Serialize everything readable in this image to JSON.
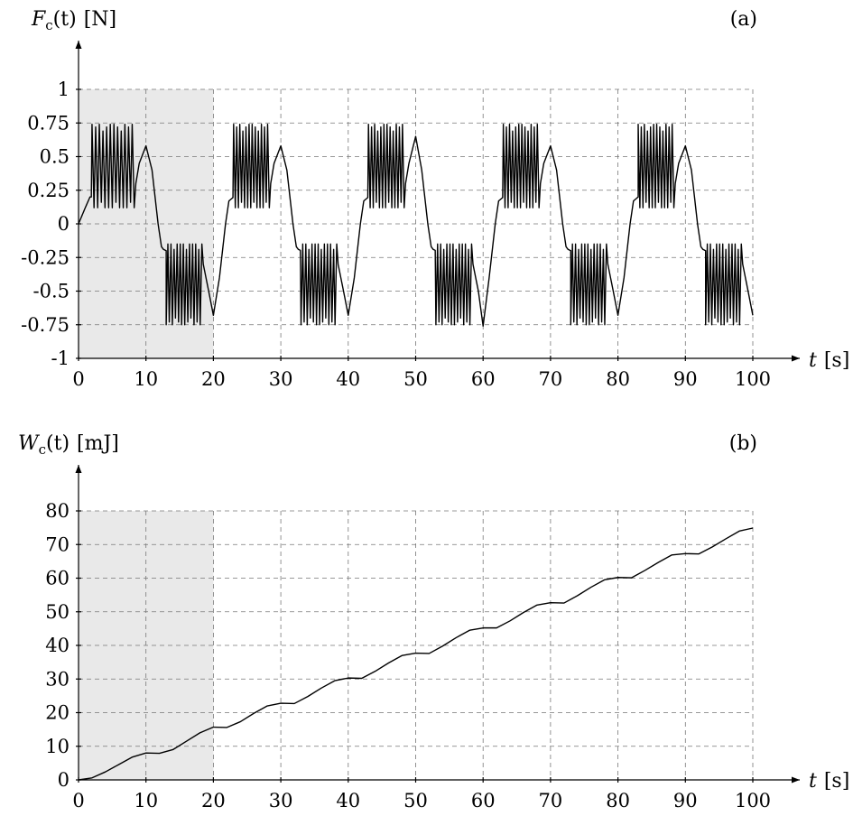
{
  "chart_data": [
    {
      "type": "line",
      "panel_tag": "(a)",
      "ylabel": "F_c(t) [N]",
      "ylabel_parts": {
        "symbol": "F",
        "subscript": "c",
        "argument": "(t)",
        "unit": "[N]"
      },
      "xlabel": "t [s]",
      "xlabel_parts": {
        "symbol": "t",
        "unit": "[s]"
      },
      "xlim": [
        0,
        100
      ],
      "ylim": [
        -1,
        1
      ],
      "x_ticks": [
        0,
        10,
        20,
        30,
        40,
        50,
        60,
        70,
        80,
        90,
        100
      ],
      "x_tick_labels": [
        "0",
        "10",
        "20",
        "30",
        "40",
        "50",
        "60",
        "70",
        "80",
        "90",
        "100"
      ],
      "y_ticks": [
        -1,
        -0.75,
        -0.5,
        -0.25,
        0,
        0.25,
        0.5,
        0.75,
        1
      ],
      "y_tick_labels": [
        "-1",
        "-0.75",
        "-0.5",
        "-0.25",
        "0",
        "0.25",
        "0.5",
        "0.75",
        "1"
      ],
      "grid": true,
      "shaded_region": {
        "x": [
          0,
          20
        ]
      },
      "series": [
        {
          "x": [
            0,
            1,
            1.7,
            2,
            8.5,
            9,
            10,
            10.9,
            11.8,
            12.3,
            12.6,
            13,
            18.5,
            19.3,
            20,
            20.9,
            21.8,
            22.3,
            23,
            28.5,
            29,
            30,
            30.9,
            31.8,
            32.3,
            32.6,
            33,
            38.5,
            39.3,
            40,
            40.9,
            41.8,
            42.3,
            43,
            48.5,
            49,
            50,
            50.9,
            51.8,
            52.3,
            52.6,
            53,
            58.5,
            59.3,
            60,
            60.9,
            61.8,
            62.3,
            63,
            68.5,
            69,
            70,
            70.9,
            71.8,
            72.3,
            72.6,
            73,
            78.5,
            79.3,
            80,
            80.9,
            81.8,
            82.3,
            83,
            88.5,
            89,
            90,
            90.9,
            91.8,
            92.3,
            92.6,
            93,
            98.5,
            99.3,
            100
          ],
          "y": [
            0,
            0.12,
            0.2,
            0.2,
            0.3,
            0.45,
            0.58,
            0.4,
            0,
            -0.17,
            -0.19,
            -0.2,
            -0.3,
            -0.5,
            -0.68,
            -0.4,
            0,
            0.17,
            0.2,
            0.3,
            0.45,
            0.58,
            0.4,
            0,
            -0.17,
            -0.19,
            -0.2,
            -0.3,
            -0.5,
            -0.68,
            -0.4,
            0,
            0.17,
            0.2,
            0.3,
            0.45,
            0.65,
            0.4,
            0,
            -0.17,
            -0.19,
            -0.2,
            -0.3,
            -0.5,
            -0.76,
            -0.4,
            0,
            0.17,
            0.2,
            0.3,
            0.45,
            0.58,
            0.4,
            0,
            -0.17,
            -0.19,
            -0.2,
            -0.3,
            -0.5,
            -0.68,
            -0.4,
            0,
            0.17,
            0.2,
            0.3,
            0.45,
            0.58,
            0.4,
            0,
            -0.17,
            -0.19,
            -0.2,
            -0.3,
            -0.5,
            -0.68
          ],
          "oscillation_bursts": [
            {
              "t": [
                2,
                8.5
              ],
              "sign": 1,
              "min": 0.12,
              "max": 0.74,
              "cycles": 12
            },
            {
              "t": [
                13,
                18.5
              ],
              "sign": -1,
              "min": 0.15,
              "max": 0.75,
              "cycles": 12
            },
            {
              "t": [
                23,
                28.5
              ],
              "sign": 1,
              "min": 0.12,
              "max": 0.74,
              "cycles": 12
            },
            {
              "t": [
                33,
                38.5
              ],
              "sign": -1,
              "min": 0.15,
              "max": 0.75,
              "cycles": 12
            },
            {
              "t": [
                43,
                48.5
              ],
              "sign": 1,
              "min": 0.12,
              "max": 0.74,
              "cycles": 12
            },
            {
              "t": [
                53,
                58.5
              ],
              "sign": -1,
              "min": 0.15,
              "max": 0.75,
              "cycles": 12
            },
            {
              "t": [
                63,
                68.5
              ],
              "sign": 1,
              "min": 0.12,
              "max": 0.74,
              "cycles": 12
            },
            {
              "t": [
                73,
                78.5
              ],
              "sign": -1,
              "min": 0.15,
              "max": 0.75,
              "cycles": 12
            },
            {
              "t": [
                83,
                88.5
              ],
              "sign": 1,
              "min": 0.12,
              "max": 0.74,
              "cycles": 12
            },
            {
              "t": [
                93,
                98.5
              ],
              "sign": -1,
              "min": 0.15,
              "max": 0.75,
              "cycles": 12
            }
          ]
        }
      ]
    },
    {
      "type": "line",
      "panel_tag": "(b)",
      "ylabel": "W_c(t) [mJ]",
      "ylabel_parts": {
        "symbol": "W",
        "subscript": "c",
        "argument": "(t)",
        "unit": "[mJ]"
      },
      "xlabel": "t [s]",
      "xlabel_parts": {
        "symbol": "t",
        "unit": "[s]"
      },
      "xlim": [
        0,
        100
      ],
      "ylim": [
        0,
        80
      ],
      "x_ticks": [
        0,
        10,
        20,
        30,
        40,
        50,
        60,
        70,
        80,
        90,
        100
      ],
      "x_tick_labels": [
        "0",
        "10",
        "20",
        "30",
        "40",
        "50",
        "60",
        "70",
        "80",
        "90",
        "100"
      ],
      "y_ticks": [
        0,
        10,
        20,
        30,
        40,
        50,
        60,
        70,
        80
      ],
      "y_tick_labels": [
        "0",
        "10",
        "20",
        "30",
        "40",
        "50",
        "60",
        "70",
        "80"
      ],
      "grid": true,
      "shaded_region": {
        "x": [
          0,
          20
        ]
      },
      "series": [
        {
          "x": [
            0,
            2,
            4,
            6,
            8,
            10,
            12,
            14,
            16,
            18,
            20,
            22,
            24,
            26,
            28,
            30,
            32,
            34,
            36,
            38,
            40,
            42,
            44,
            46,
            48,
            50,
            52,
            54,
            56,
            58,
            60,
            62,
            64,
            66,
            68,
            70,
            72,
            74,
            76,
            78,
            80,
            82,
            84,
            86,
            88,
            90,
            92,
            94,
            96,
            98,
            100
          ],
          "y": [
            0,
            0.6,
            2.4,
            4.6,
            6.8,
            8.0,
            7.9,
            9.0,
            11.5,
            14.0,
            15.7,
            15.6,
            17.3,
            19.8,
            22.0,
            22.8,
            22.7,
            24.8,
            27.3,
            29.5,
            30.3,
            30.2,
            32.3,
            34.8,
            37.0,
            37.7,
            37.6,
            39.8,
            42.3,
            44.5,
            45.2,
            45.2,
            47.3,
            49.8,
            52.0,
            52.7,
            52.6,
            54.8,
            57.3,
            59.5,
            60.2,
            60.1,
            62.3,
            64.7,
            66.9,
            67.3,
            67.2,
            69.3,
            71.7,
            74.0,
            74.9
          ]
        }
      ]
    }
  ]
}
